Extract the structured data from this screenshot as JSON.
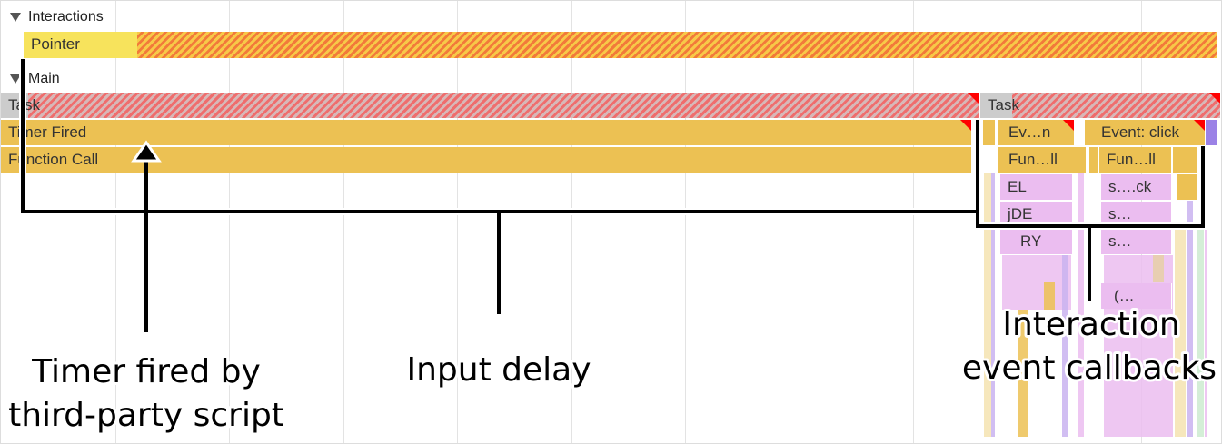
{
  "tracks": {
    "interactions": {
      "title": "Interactions",
      "pointer_label": "Pointer"
    },
    "main": {
      "title": "Main",
      "task1": "Task",
      "task2": "Task",
      "timer_fired": "Timer Fired",
      "function_call": "Function Call",
      "event_1": "Ev…n",
      "event_click": "Event: click",
      "fun_1": "Fun…ll",
      "fun_2": "Fun…ll",
      "el": "EL",
      "sck": "s….ck",
      "jde": "jDE",
      "s1": "s…",
      "ry": "RY",
      "s2": "s…",
      "paren": "(…"
    }
  },
  "annotations": {
    "timer": [
      "Timer fired by",
      "third-party script"
    ],
    "input_delay": "Input delay",
    "callbacks": [
      "Interaction",
      "event callbacks"
    ]
  },
  "colors": {
    "scripting": "#ecc153",
    "rendering": "#ebbdf0",
    "long_task": "#ef6d6d",
    "interaction": "#f7e35c",
    "annotation": "#000000"
  }
}
